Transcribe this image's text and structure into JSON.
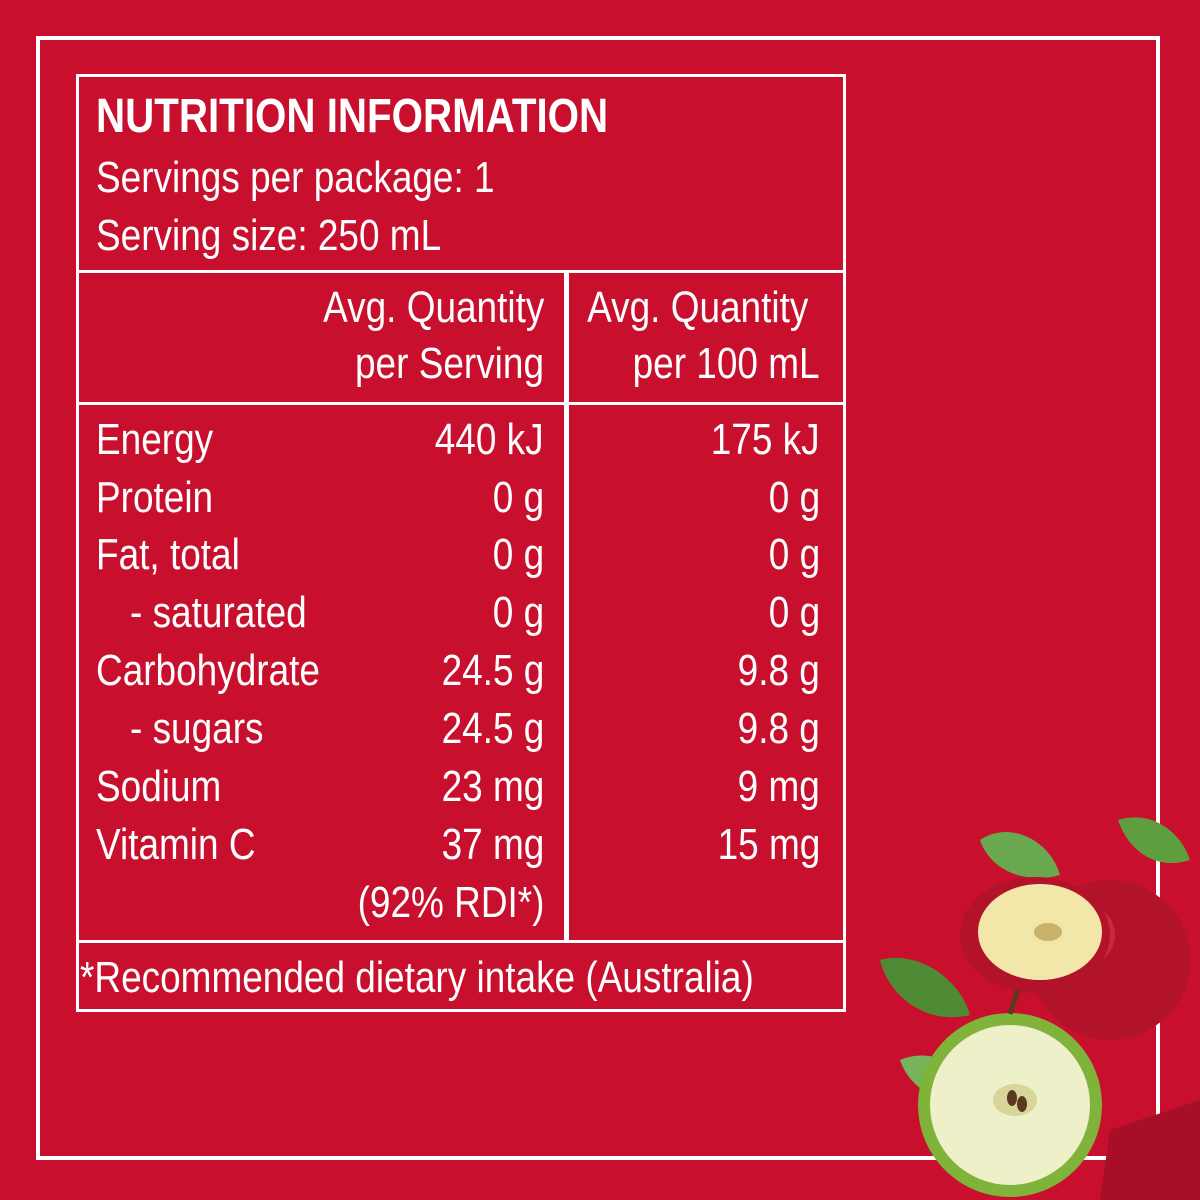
{
  "panel": {
    "title": "NUTRITION INFORMATION",
    "servings_per_package": "Servings per package: 1",
    "serving_size": "Serving size: 250 mL"
  },
  "columns": {
    "per_serving_line1": "Avg. Quantity",
    "per_serving_line2": "per Serving",
    "per_100ml_line1": "Avg. Quantity",
    "per_100ml_line2": "per 100 mL"
  },
  "rows": [
    {
      "label": "Energy",
      "per_serving": "440 kJ",
      "per_100ml": "175 kJ"
    },
    {
      "label": "Protein",
      "per_serving": "0 g",
      "per_100ml": "0 g"
    },
    {
      "label": "Fat, total",
      "per_serving": "0 g",
      "per_100ml": "0 g"
    },
    {
      "label": "- saturated",
      "per_serving": "0 g",
      "per_100ml": "0 g"
    },
    {
      "label": "Carbohydrate",
      "per_serving": "24.5 g",
      "per_100ml": "9.8 g"
    },
    {
      "label": "- sugars",
      "per_serving": "24.5 g",
      "per_100ml": "9.8 g"
    },
    {
      "label": "Sodium",
      "per_serving": "23 mg",
      "per_100ml": "9 mg"
    },
    {
      "label": "Vitamin C",
      "per_serving": "37 mg",
      "per_100ml": "15 mg"
    }
  ],
  "vitamin_c_rdi": "(92% RDI*)",
  "footnote": "*Recommended dietary intake (Australia)",
  "colors": {
    "background": "#c8102e",
    "text": "#ffffff"
  },
  "decoration": {
    "image": "apples-illustration"
  }
}
